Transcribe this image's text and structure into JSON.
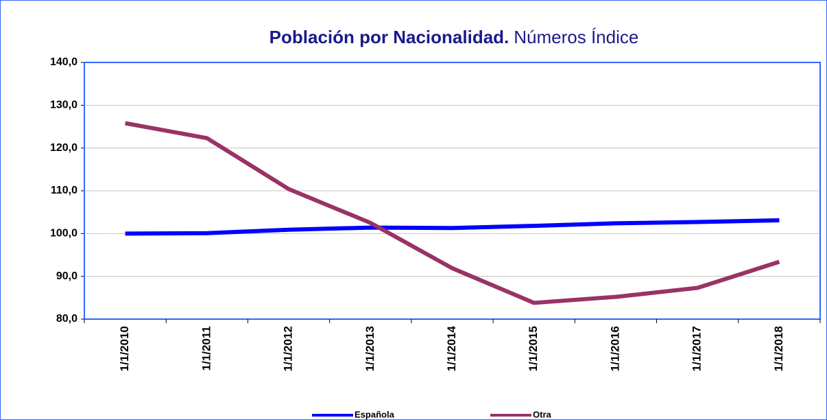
{
  "chart_data": {
    "type": "line",
    "title": "Población por Nacionalidad.",
    "subtitle": "Números Índice",
    "categories": [
      "1/1/2010",
      "1/1/2011",
      "1/1/2012",
      "1/1/2013",
      "1/1/2014",
      "1/1/2015",
      "1/1/2016",
      "1/1/2017",
      "1/1/2018"
    ],
    "series": [
      {
        "name": "Española",
        "color": "#0000ff",
        "values": [
          100.0,
          100.1,
          100.9,
          101.4,
          101.3,
          101.8,
          102.4,
          102.7,
          103.1
        ]
      },
      {
        "name": "Otra",
        "color": "#993366",
        "values": [
          125.8,
          122.3,
          110.4,
          102.5,
          91.9,
          83.8,
          85.2,
          87.3,
          93.4
        ]
      }
    ],
    "ylim": [
      80,
      140
    ],
    "yticks": [
      {
        "value": 80,
        "label": "80,0"
      },
      {
        "value": 90,
        "label": "90,0"
      },
      {
        "value": 100,
        "label": "100,0"
      },
      {
        "value": 110,
        "label": "110,0"
      },
      {
        "value": 120,
        "label": "120,0"
      },
      {
        "value": 130,
        "label": "130,0"
      },
      {
        "value": 140,
        "label": "140,0"
      }
    ],
    "grid": true,
    "legend": "bottom"
  }
}
